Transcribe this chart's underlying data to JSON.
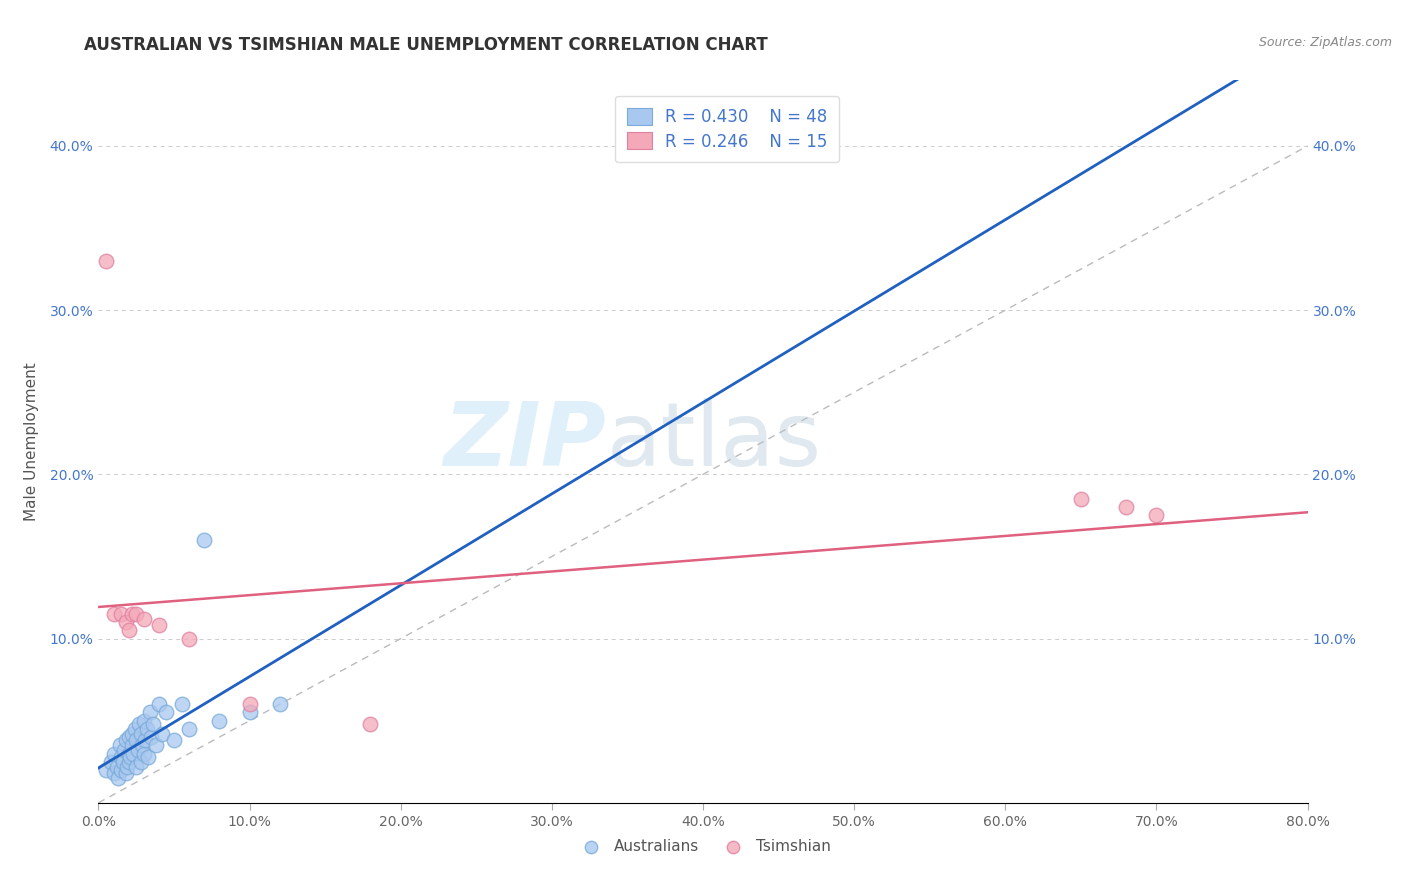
{
  "title": "AUSTRALIAN VS TSIMSHIAN MALE UNEMPLOYMENT CORRELATION CHART",
  "source": "Source: ZipAtlas.com",
  "ylabel": "Male Unemployment",
  "watermark_zip": "ZIP",
  "watermark_atlas": "atlas",
  "legend_r1": "R = 0.430",
  "legend_n1": "N = 48",
  "legend_r2": "R = 0.246",
  "legend_n2": "N = 15",
  "xlim": [
    0.0,
    0.8
  ],
  "ylim": [
    0.0,
    0.44
  ],
  "xticks": [
    0.0,
    0.1,
    0.2,
    0.3,
    0.4,
    0.5,
    0.6,
    0.7,
    0.8
  ],
  "xtick_labels": [
    "0.0%",
    "10.0%",
    "20.0%",
    "30.0%",
    "40.0%",
    "50.0%",
    "60.0%",
    "70.0%",
    "80.0%"
  ],
  "yticks": [
    0.0,
    0.1,
    0.2,
    0.3,
    0.4
  ],
  "ytick_labels": [
    "",
    "10.0%",
    "20.0%",
    "30.0%",
    "40.0%"
  ],
  "grid_color": "#cccccc",
  "bg_color": "#ffffff",
  "aus_color": "#a8c8f0",
  "tsim_color": "#f4a8b8",
  "aus_edge_color": "#7aaad8",
  "tsim_edge_color": "#e080a0",
  "trend_aus_color": "#2060c0",
  "trend_tsim_color": "#e06080",
  "label_color": "#4477cc",
  "diag_color": "#bbbbbb",
  "title_color": "#333333",
  "source_color": "#888888",
  "aus_x": [
    0.005,
    0.008,
    0.01,
    0.01,
    0.012,
    0.013,
    0.014,
    0.015,
    0.015,
    0.016,
    0.017,
    0.018,
    0.018,
    0.019,
    0.02,
    0.02,
    0.02,
    0.021,
    0.022,
    0.022,
    0.023,
    0.024,
    0.025,
    0.025,
    0.026,
    0.027,
    0.028,
    0.028,
    0.029,
    0.03,
    0.03,
    0.031,
    0.032,
    0.033,
    0.034,
    0.035,
    0.036,
    0.038,
    0.04,
    0.042,
    0.045,
    0.05,
    0.055,
    0.06,
    0.07,
    0.08,
    0.1,
    0.12
  ],
  "aus_y": [
    0.02,
    0.025,
    0.018,
    0.03,
    0.022,
    0.015,
    0.035,
    0.02,
    0.028,
    0.025,
    0.032,
    0.018,
    0.038,
    0.022,
    0.025,
    0.03,
    0.04,
    0.028,
    0.035,
    0.042,
    0.03,
    0.045,
    0.022,
    0.038,
    0.032,
    0.048,
    0.025,
    0.042,
    0.035,
    0.03,
    0.05,
    0.038,
    0.045,
    0.028,
    0.055,
    0.04,
    0.048,
    0.035,
    0.06,
    0.042,
    0.055,
    0.038,
    0.06,
    0.045,
    0.16,
    0.05,
    0.055,
    0.06
  ],
  "tsim_x": [
    0.005,
    0.01,
    0.015,
    0.018,
    0.02,
    0.022,
    0.025,
    0.03,
    0.04,
    0.06,
    0.1,
    0.18,
    0.65,
    0.68,
    0.7
  ],
  "tsim_y": [
    0.33,
    0.115,
    0.115,
    0.11,
    0.105,
    0.115,
    0.115,
    0.112,
    0.108,
    0.1,
    0.06,
    0.048,
    0.185,
    0.18,
    0.175
  ]
}
